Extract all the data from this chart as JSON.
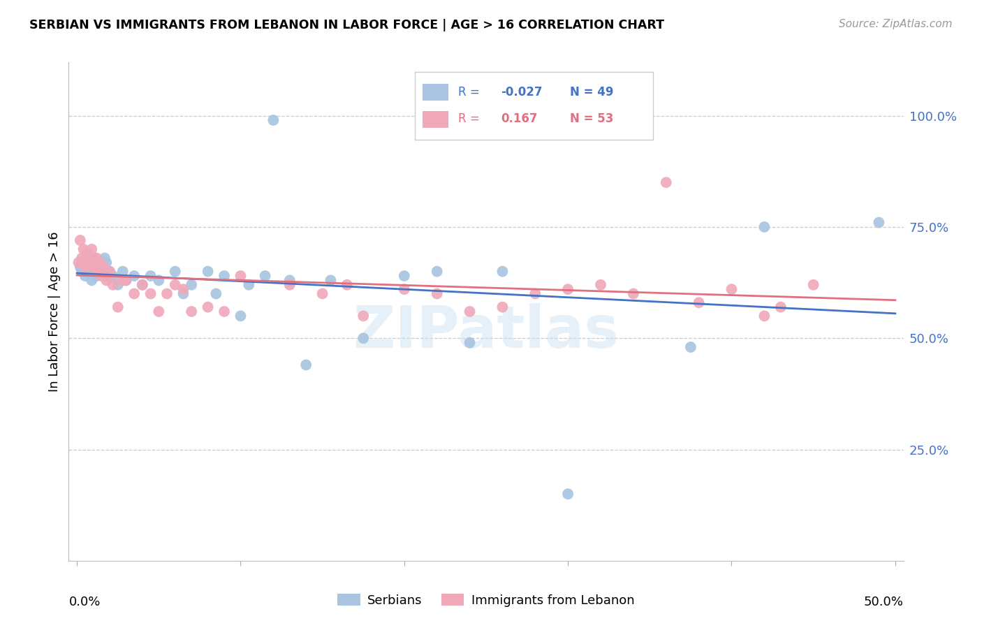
{
  "title": "SERBIAN VS IMMIGRANTS FROM LEBANON IN LABOR FORCE | AGE > 16 CORRELATION CHART",
  "source": "Source: ZipAtlas.com",
  "ylabel": "In Labor Force | Age > 16",
  "xlim": [
    0.0,
    0.5
  ],
  "ylim": [
    0.0,
    1.1
  ],
  "r_serbian": -0.027,
  "n_serbian": 49,
  "r_lebanon": 0.167,
  "n_lebanon": 53,
  "serbian_color": "#a8c4e0",
  "lebanon_color": "#f0a8b8",
  "trendline_serbian_color": "#4472c4",
  "trendline_lebanon_color": "#e07080",
  "legend_label_serbian": "Serbians",
  "legend_label_lebanon": "Immigrants from Lebanon",
  "watermark": "ZIPatlas",
  "ytick_vals": [
    0.25,
    0.5,
    0.75,
    1.0
  ],
  "ytick_labels": [
    "25.0%",
    "50.0%",
    "75.0%",
    "100.0%"
  ],
  "serbian_x": [
    0.002,
    0.003,
    0.004,
    0.005,
    0.006,
    0.007,
    0.008,
    0.009,
    0.01,
    0.011,
    0.012,
    0.013,
    0.014,
    0.015,
    0.016,
    0.017,
    0.018,
    0.019,
    0.02,
    0.022,
    0.025,
    0.028,
    0.03,
    0.035,
    0.04,
    0.045,
    0.05,
    0.06,
    0.065,
    0.07,
    0.08,
    0.085,
    0.09,
    0.1,
    0.105,
    0.115,
    0.12,
    0.13,
    0.14,
    0.155,
    0.175,
    0.2,
    0.22,
    0.24,
    0.26,
    0.3,
    0.375,
    0.42,
    0.49
  ],
  "serbian_y": [
    0.66,
    0.65,
    0.67,
    0.64,
    0.66,
    0.65,
    0.68,
    0.63,
    0.65,
    0.66,
    0.64,
    0.66,
    0.67,
    0.65,
    0.64,
    0.68,
    0.67,
    0.64,
    0.65,
    0.64,
    0.62,
    0.65,
    0.63,
    0.64,
    0.62,
    0.64,
    0.63,
    0.65,
    0.6,
    0.62,
    0.65,
    0.6,
    0.64,
    0.55,
    0.62,
    0.64,
    0.99,
    0.63,
    0.44,
    0.63,
    0.5,
    0.64,
    0.65,
    0.49,
    0.65,
    0.15,
    0.48,
    0.75,
    0.76
  ],
  "lebanon_x": [
    0.001,
    0.002,
    0.003,
    0.004,
    0.005,
    0.006,
    0.007,
    0.008,
    0.009,
    0.01,
    0.011,
    0.012,
    0.013,
    0.014,
    0.015,
    0.016,
    0.017,
    0.018,
    0.019,
    0.02,
    0.022,
    0.025,
    0.028,
    0.03,
    0.035,
    0.04,
    0.045,
    0.05,
    0.055,
    0.06,
    0.065,
    0.07,
    0.08,
    0.09,
    0.1,
    0.13,
    0.15,
    0.165,
    0.175,
    0.2,
    0.22,
    0.24,
    0.26,
    0.28,
    0.3,
    0.32,
    0.34,
    0.36,
    0.38,
    0.4,
    0.42,
    0.43,
    0.45
  ],
  "lebanon_y": [
    0.67,
    0.72,
    0.68,
    0.7,
    0.66,
    0.69,
    0.68,
    0.66,
    0.7,
    0.68,
    0.66,
    0.68,
    0.65,
    0.67,
    0.64,
    0.66,
    0.65,
    0.63,
    0.64,
    0.65,
    0.62,
    0.57,
    0.63,
    0.63,
    0.6,
    0.62,
    0.6,
    0.56,
    0.6,
    0.62,
    0.61,
    0.56,
    0.57,
    0.56,
    0.64,
    0.62,
    0.6,
    0.62,
    0.55,
    0.61,
    0.6,
    0.56,
    0.57,
    0.6,
    0.61,
    0.62,
    0.6,
    0.85,
    0.58,
    0.61,
    0.55,
    0.57,
    0.62
  ]
}
